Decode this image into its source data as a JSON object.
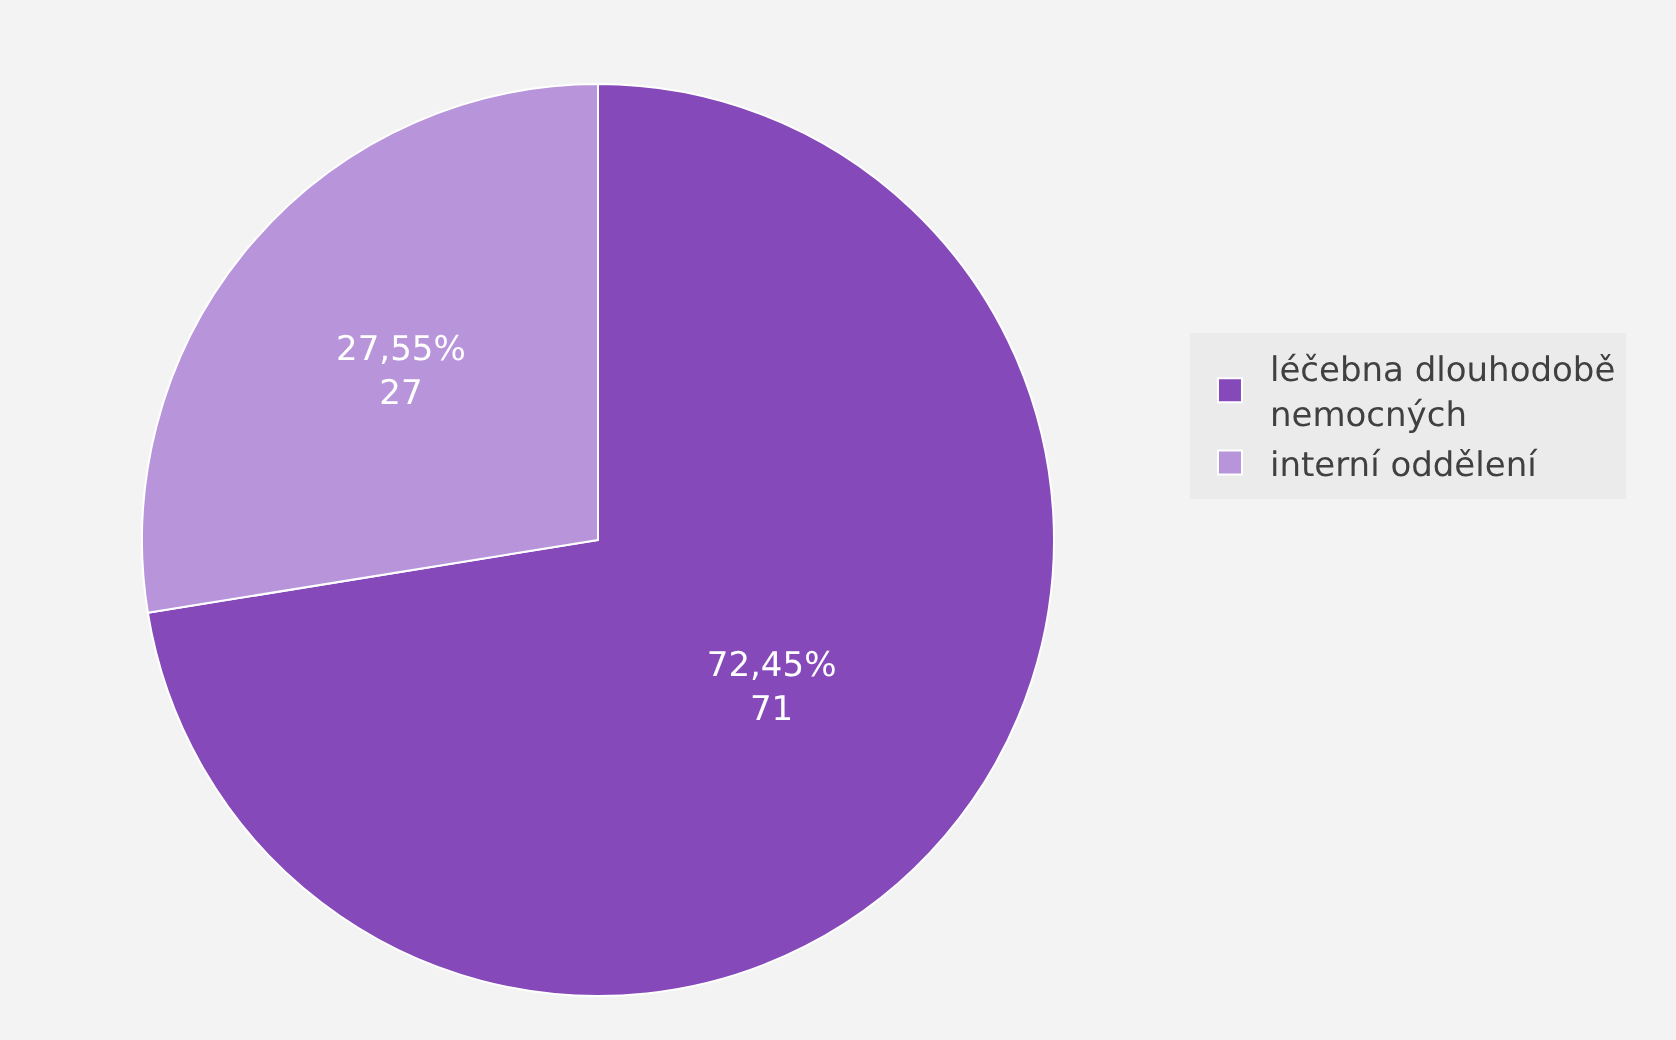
{
  "chart_data": {
    "type": "pie",
    "categories": [
      "léčebna dlouhodobě nemocných",
      "interní oddělení"
    ],
    "values": [
      71,
      27
    ],
    "colors": [
      "#8549ba",
      "#b894db"
    ],
    "value_labels": [
      "72,45%\n71",
      "27,55%\n27"
    ],
    "legend": "right"
  }
}
